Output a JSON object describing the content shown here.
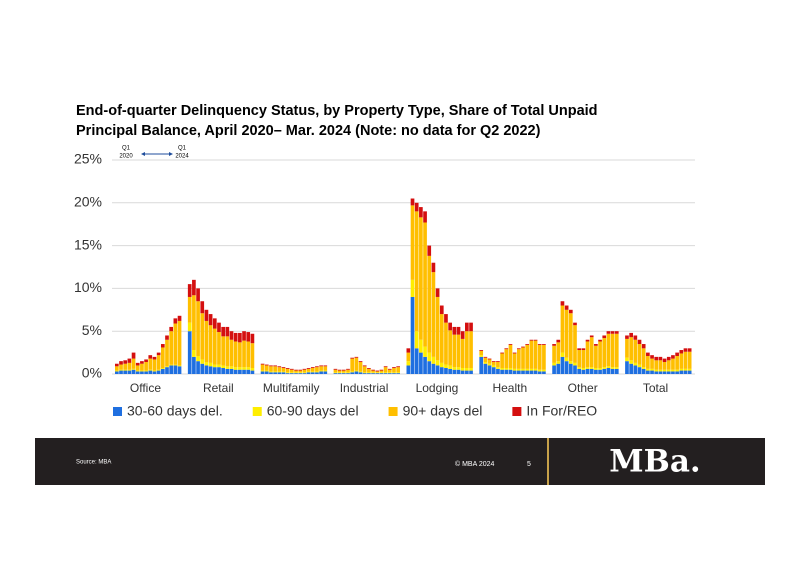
{
  "chart_data": {
    "type": "bar",
    "stacked": true,
    "title": [
      "End-of-quarter Delinquency Status, by Property Type, Share of Total Unpaid",
      "Principal Balance, April 2020– Mar. 2024 (Note: no data for Q2 2022)"
    ],
    "annotation": {
      "start": [
        "Q1",
        "2020"
      ],
      "end": [
        "Q1",
        "2024"
      ]
    },
    "ylim": [
      0,
      25
    ],
    "yticks": [
      {
        "value": 0,
        "label": "0%"
      },
      {
        "value": 5,
        "label": "5%"
      },
      {
        "value": 10,
        "label": "10%"
      },
      {
        "value": 15,
        "label": "15%"
      },
      {
        "value": 20,
        "label": "20%"
      },
      {
        "value": 25,
        "label": "25%"
      }
    ],
    "grid": true,
    "series": [
      {
        "name": "30-60 days del.",
        "color": "#1f6fe0"
      },
      {
        "name": "60-90 days del",
        "color": "#ffee00"
      },
      {
        "name": "90+ days del",
        "color": "#ffbf00"
      },
      {
        "name": "In For/REO",
        "color": "#d40f0f"
      }
    ],
    "groups": [
      {
        "label": "Office",
        "values": [
          [
            0.3,
            0.4,
            0.4,
            0.4,
            0.5,
            0.3,
            0.3,
            0.3,
            0.4,
            0.3,
            0.4,
            0.6,
            0.8,
            1.0,
            1.0,
            0.9
          ],
          [
            0.1,
            0.1,
            0.1,
            0.1,
            0.1,
            0.1,
            0.1,
            0.1,
            0.1,
            0.1,
            0.1,
            0.1,
            0.1,
            0.1,
            0.1,
            0.1
          ],
          [
            0.5,
            0.6,
            0.7,
            0.8,
            1.2,
            0.6,
            0.8,
            1.0,
            1.3,
            1.3,
            1.7,
            2.4,
            3.1,
            3.9,
            4.8,
            5.2
          ],
          [
            0.3,
            0.4,
            0.4,
            0.5,
            0.7,
            0.3,
            0.3,
            0.3,
            0.4,
            0.3,
            0.3,
            0.4,
            0.5,
            0.5,
            0.6,
            0.6
          ]
        ]
      },
      {
        "label": "Retail",
        "values": [
          [
            5.0,
            2.0,
            1.5,
            1.2,
            1.0,
            0.9,
            0.8,
            0.8,
            0.7,
            0.6,
            0.6,
            0.5,
            0.5,
            0.5,
            0.5,
            0.4
          ],
          [
            1.0,
            0.8,
            0.6,
            0.5,
            0.4,
            0.4,
            0.3,
            0.3,
            0.3,
            0.3,
            0.3,
            0.3,
            0.3,
            0.3,
            0.3,
            0.3
          ],
          [
            3.0,
            6.4,
            6.4,
            5.4,
            4.8,
            4.4,
            4.2,
            3.8,
            3.4,
            3.5,
            3.1,
            3.0,
            2.9,
            3.1,
            3.0,
            2.9
          ],
          [
            1.5,
            1.8,
            1.5,
            1.4,
            1.3,
            1.3,
            1.2,
            1.1,
            1.1,
            1.1,
            1.0,
            1.0,
            1.1,
            1.1,
            1.1,
            1.1
          ]
        ]
      },
      {
        "label": "Multifamily",
        "values": [
          [
            0.3,
            0.3,
            0.2,
            0.2,
            0.2,
            0.2,
            0.1,
            0.1,
            0.1,
            0.1,
            0.1,
            0.2,
            0.2,
            0.2,
            0.3,
            0.3
          ],
          [
            0.1,
            0.1,
            0.1,
            0.1,
            0.1,
            0.1,
            0.1,
            0.1,
            0.1,
            0.1,
            0.1,
            0.1,
            0.1,
            0.1,
            0.1,
            0.1
          ],
          [
            0.7,
            0.6,
            0.6,
            0.6,
            0.5,
            0.4,
            0.4,
            0.3,
            0.2,
            0.2,
            0.3,
            0.3,
            0.4,
            0.5,
            0.5,
            0.5
          ],
          [
            0.1,
            0.1,
            0.1,
            0.1,
            0.1,
            0.1,
            0.1,
            0.1,
            0.1,
            0.1,
            0.1,
            0.1,
            0.1,
            0.1,
            0.1,
            0.1
          ]
        ]
      },
      {
        "label": "Industrial",
        "values": [
          [
            0.1,
            0.1,
            0.1,
            0.1,
            0.2,
            0.3,
            0.2,
            0.1,
            0.1,
            0.1,
            0.1,
            0.1,
            0.1,
            0.1,
            0.1,
            0.1
          ],
          [
            0.1,
            0.1,
            0.1,
            0.1,
            0.1,
            0.1,
            0.1,
            0.1,
            0.1,
            0.1,
            0.1,
            0.1,
            0.1,
            0.1,
            0.1,
            0.1
          ],
          [
            0.3,
            0.2,
            0.2,
            0.3,
            1.5,
            1.5,
            1.1,
            0.7,
            0.4,
            0.2,
            0.1,
            0.2,
            0.6,
            0.3,
            0.5,
            0.6
          ],
          [
            0.1,
            0.1,
            0.1,
            0.1,
            0.1,
            0.1,
            0.1,
            0.1,
            0.1,
            0.1,
            0.1,
            0.1,
            0.1,
            0.1,
            0.1,
            0.1
          ]
        ]
      },
      {
        "label": "Lodging",
        "values": [
          [
            1.0,
            9.0,
            3.0,
            2.5,
            2.0,
            1.5,
            1.2,
            1.0,
            0.8,
            0.7,
            0.6,
            0.5,
            0.5,
            0.4,
            0.4,
            0.4
          ],
          [
            0.5,
            2.0,
            2.0,
            1.5,
            1.2,
            1.0,
            0.8,
            0.6,
            0.5,
            0.4,
            0.4,
            0.3,
            0.3,
            0.3,
            0.3,
            0.3
          ],
          [
            1.0,
            8.7,
            14.0,
            14.3,
            14.5,
            11.3,
            9.9,
            7.4,
            5.7,
            4.9,
            4.1,
            3.8,
            3.8,
            3.4,
            4.3,
            4.3
          ],
          [
            0.5,
            0.8,
            1.0,
            1.2,
            1.3,
            1.2,
            1.1,
            1.0,
            1.0,
            1.0,
            0.9,
            0.9,
            0.9,
            0.9,
            1.0,
            1.0
          ]
        ]
      },
      {
        "label": "Health",
        "values": [
          [
            2.0,
            1.2,
            1.0,
            0.8,
            0.6,
            0.5,
            0.5,
            0.5,
            0.4,
            0.4,
            0.4,
            0.4,
            0.4,
            0.4,
            0.3,
            0.3
          ],
          [
            0.2,
            0.2,
            0.2,
            0.2,
            0.2,
            0.2,
            0.2,
            0.2,
            0.2,
            0.2,
            0.2,
            0.2,
            0.2,
            0.2,
            0.2,
            0.2
          ],
          [
            0.5,
            0.5,
            0.5,
            0.4,
            0.6,
            1.7,
            2.2,
            2.7,
            1.8,
            2.3,
            2.5,
            2.8,
            3.3,
            3.3,
            2.9,
            2.9
          ],
          [
            0.1,
            0.1,
            0.1,
            0.1,
            0.1,
            0.1,
            0.1,
            0.1,
            0.1,
            0.1,
            0.1,
            0.1,
            0.1,
            0.1,
            0.1,
            0.1
          ]
        ]
      },
      {
        "label": "Other",
        "values": [
          [
            1.0,
            1.2,
            2.0,
            1.5,
            1.2,
            1.0,
            0.6,
            0.5,
            0.6,
            0.6,
            0.5,
            0.5,
            0.6,
            0.7,
            0.6,
            0.6
          ],
          [
            0.3,
            0.3,
            0.5,
            0.4,
            0.3,
            0.3,
            0.2,
            0.2,
            0.2,
            0.2,
            0.2,
            0.2,
            0.2,
            0.2,
            0.2,
            0.2
          ],
          [
            2.0,
            2.2,
            5.5,
            5.6,
            5.6,
            4.4,
            2.0,
            2.1,
            3.0,
            3.5,
            2.6,
            3.1,
            3.4,
            3.8,
            3.9,
            3.9
          ],
          [
            0.2,
            0.3,
            0.5,
            0.5,
            0.4,
            0.3,
            0.2,
            0.2,
            0.2,
            0.2,
            0.2,
            0.2,
            0.3,
            0.3,
            0.3,
            0.3
          ]
        ]
      },
      {
        "label": "Total",
        "values": [
          [
            1.5,
            1.2,
            1.0,
            0.8,
            0.6,
            0.4,
            0.4,
            0.3,
            0.3,
            0.3,
            0.3,
            0.3,
            0.3,
            0.4,
            0.4,
            0.4
          ],
          [
            0.4,
            0.4,
            0.3,
            0.3,
            0.2,
            0.2,
            0.2,
            0.2,
            0.2,
            0.2,
            0.2,
            0.2,
            0.2,
            0.2,
            0.2,
            0.2
          ],
          [
            2.2,
            2.7,
            2.7,
            2.4,
            2.2,
            1.5,
            1.2,
            1.1,
            1.1,
            0.9,
            1.1,
            1.3,
            1.6,
            1.8,
            2.0,
            2.0
          ],
          [
            0.4,
            0.5,
            0.5,
            0.5,
            0.5,
            0.4,
            0.4,
            0.4,
            0.4,
            0.4,
            0.4,
            0.4,
            0.4,
            0.4,
            0.4,
            0.4
          ]
        ]
      }
    ]
  },
  "footer": {
    "source": "Source: MBA",
    "copyright": "© MBA 2024",
    "page": "5",
    "logo": "MBa."
  }
}
